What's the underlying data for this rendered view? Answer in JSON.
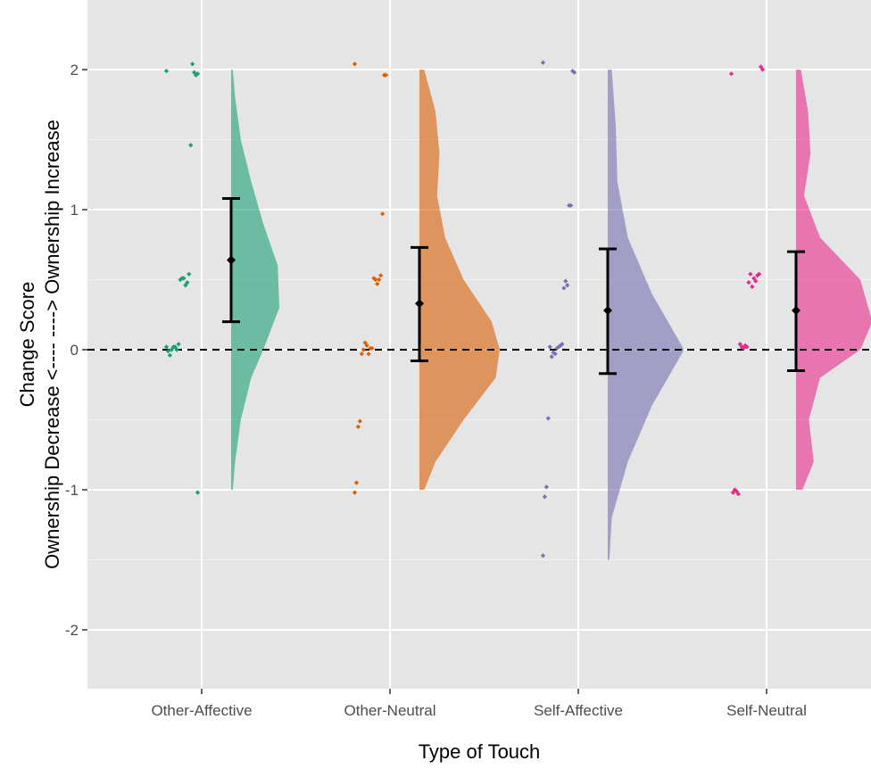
{
  "chart_data": {
    "type": "raincloud",
    "xlabel": "Type of Touch",
    "ylabel_lines": [
      "Change Score",
      "Ownership Decrease <----  ----> Ownership Increase"
    ],
    "ylim": [
      -2.4,
      2.4
    ],
    "yticks": [
      -2,
      -1,
      0,
      1,
      2
    ],
    "ytick_labels": [
      "-2",
      "-1",
      "0",
      "1",
      "2"
    ],
    "reference_line_y": 0,
    "grid": true,
    "categories": [
      "Other-Affective",
      "Other-Neutral",
      "Self-Affective",
      "Self-Neutral"
    ],
    "colors": {
      "Other-Affective": "#1b9e77",
      "Other-Neutral": "#d95f02",
      "Self-Affective": "#7570b3",
      "Self-Neutral": "#e7298a"
    },
    "summary": [
      {
        "category": "Other-Affective",
        "mean": 0.64,
        "lower": 0.2,
        "upper": 1.08
      },
      {
        "category": "Other-Neutral",
        "mean": 0.33,
        "lower": -0.08,
        "upper": 0.73
      },
      {
        "category": "Self-Affective",
        "mean": 0.28,
        "lower": -0.17,
        "upper": 0.72
      },
      {
        "category": "Self-Neutral",
        "mean": 0.28,
        "lower": -0.15,
        "upper": 0.7
      }
    ],
    "density": [
      {
        "category": "Other-Affective",
        "y": [
          -1,
          -0.8,
          -0.5,
          -0.2,
          0,
          0.3,
          0.6,
          0.9,
          1.2,
          1.5,
          1.8,
          2
        ],
        "width": [
          0.02,
          0.05,
          0.12,
          0.25,
          0.4,
          0.6,
          0.58,
          0.4,
          0.25,
          0.12,
          0.05,
          0.02
        ]
      },
      {
        "category": "Other-Neutral",
        "y": [
          -1,
          -0.8,
          -0.5,
          -0.2,
          0,
          0.2,
          0.5,
          0.8,
          1.1,
          1.4,
          1.7,
          2
        ],
        "width": [
          0.06,
          0.2,
          0.55,
          0.95,
          1.0,
          0.9,
          0.55,
          0.32,
          0.22,
          0.25,
          0.2,
          0.06
        ]
      },
      {
        "category": "Self-Affective",
        "y": [
          -1.5,
          -1.2,
          -0.8,
          -0.4,
          0,
          0.4,
          0.8,
          1.2,
          1.6,
          2
        ],
        "width": [
          0.02,
          0.05,
          0.25,
          0.55,
          0.95,
          0.55,
          0.25,
          0.12,
          0.1,
          0.05
        ]
      },
      {
        "category": "Self-Neutral",
        "y": [
          -1,
          -0.8,
          -0.5,
          -0.2,
          0,
          0.2,
          0.5,
          0.8,
          1.1,
          1.4,
          1.7,
          2
        ],
        "width": [
          0.08,
          0.22,
          0.16,
          0.3,
          0.8,
          0.95,
          0.8,
          0.3,
          0.1,
          0.18,
          0.15,
          0.06
        ]
      }
    ],
    "points": [
      {
        "category": "Other-Affective",
        "y": [
          1.99,
          1.97,
          1.96,
          1.98,
          2.04,
          1.46,
          0.54,
          0.48,
          0.46,
          0.51,
          0.51,
          0.5,
          0.04,
          0.0,
          0.02,
          0.02,
          0.0,
          -0.04,
          -0.01,
          0.02,
          -1.02
        ]
      },
      {
        "category": "Other-Neutral",
        "y": [
          2.04,
          1.96,
          1.96,
          0.97,
          0.53,
          0.5,
          0.47,
          0.5,
          0.51,
          0.01,
          0.01,
          -0.03,
          0.03,
          0.05,
          0.0,
          -0.03,
          -0.51,
          -0.55,
          -0.95,
          -1.02
        ]
      },
      {
        "category": "Self-Affective",
        "y": [
          2.05,
          1.98,
          1.99,
          1.03,
          1.03,
          0.46,
          0.49,
          0.44,
          0.04,
          0.03,
          0.02,
          0.01,
          -0.03,
          -0.02,
          -0.05,
          0.02,
          -0.49,
          -0.98,
          -1.05,
          -1.47
        ]
      },
      {
        "category": "Self-Neutral",
        "y": [
          1.97,
          2.0,
          2.02,
          0.54,
          0.53,
          0.49,
          0.51,
          0.45,
          0.54,
          0.48,
          0.02,
          0.03,
          0.01,
          0.02,
          0.04,
          -1.03,
          -1.01,
          -1.0,
          -1.02
        ]
      }
    ]
  }
}
